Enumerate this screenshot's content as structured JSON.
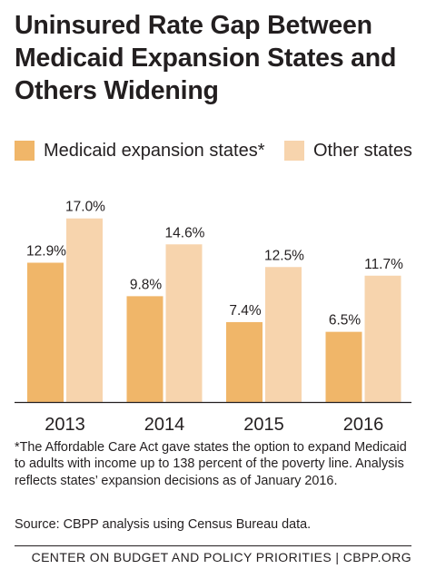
{
  "title": "Uninsured Rate Gap Between Medicaid Expansion States and Others Widening",
  "colors": {
    "expansion": "#f0b669",
    "other": "#f7d4ad",
    "axis": "#231f20"
  },
  "chart_data": {
    "type": "bar",
    "categories": [
      "2013",
      "2014",
      "2015",
      "2016"
    ],
    "series": [
      {
        "name": "Medicaid expansion states*",
        "values": [
          12.9,
          9.8,
          7.4,
          6.5
        ],
        "labels": [
          "12.9%",
          "9.8%",
          "7.4%",
          "6.5%"
        ]
      },
      {
        "name": "Other states",
        "values": [
          17.0,
          14.6,
          12.5,
          11.7
        ],
        "labels": [
          "17.0%",
          "14.6%",
          "12.5%",
          "11.7%"
        ]
      }
    ],
    "ylim": [
      0,
      17.5
    ],
    "grid": false,
    "legend": "top"
  },
  "footnote": "*The Affordable Care Act gave states the option to expand Medicaid to adults with income up to 138 percent of the poverty line.  Analysis reflects states’ expansion decisions as of January 2016.",
  "source": "Source: CBPP analysis using Census Bureau data.",
  "footer": "CENTER ON BUDGET AND POLICY PRIORITIES | CBPP.ORG"
}
